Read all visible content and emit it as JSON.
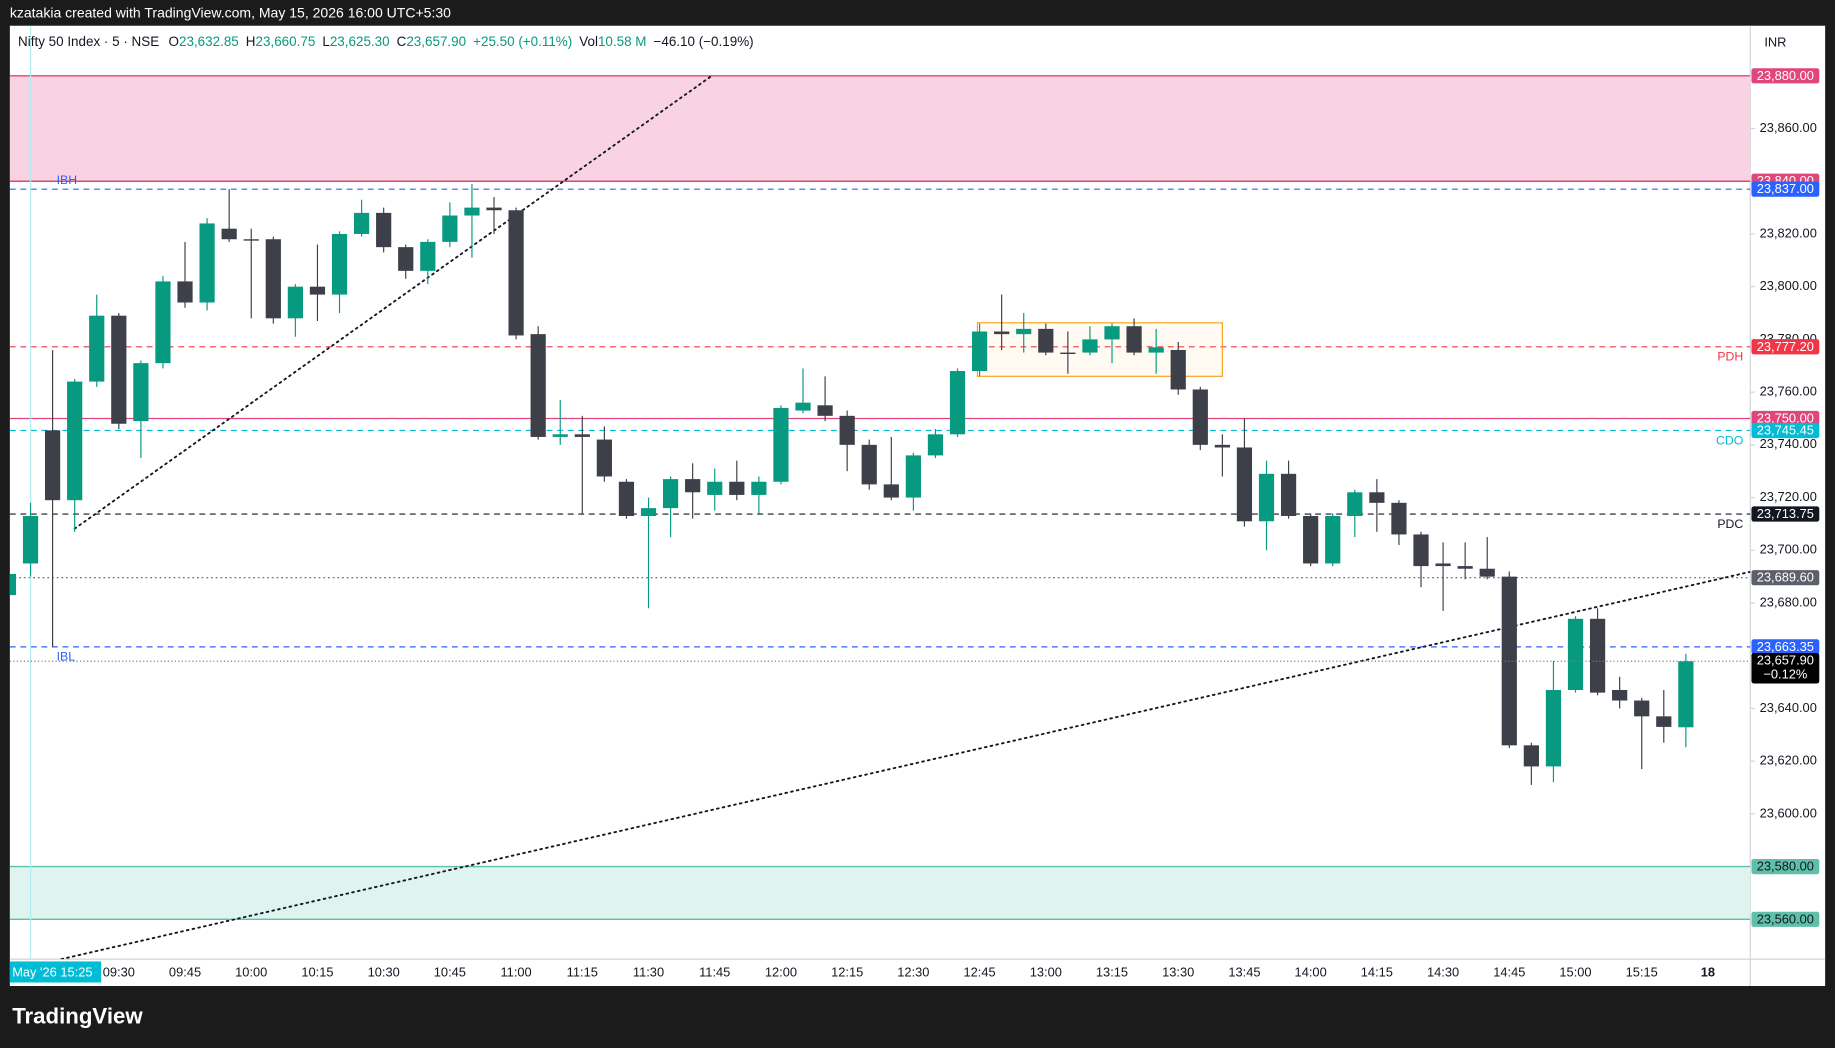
{
  "chart_data": {
    "type": "candlestick",
    "watermark": "kzatakia created with TradingView.com, May 15, 2026 16:00 UTC+5:30",
    "brand": "TradingView",
    "currency": "INR",
    "legend": {
      "symbol": "Nifty 50 Index · 5 · NSE",
      "fields": [
        {
          "key": "O",
          "value": "23,632.85"
        },
        {
          "key": "H",
          "value": "23,660.75"
        },
        {
          "key": "L",
          "value": "23,625.30"
        },
        {
          "key": "C",
          "value": "23,657.90"
        }
      ],
      "change": "+25.50 (+0.11%)",
      "volume_key": "Vol",
      "volume": "10.58 M",
      "volume_change": "−46.10 (−0.19%)"
    },
    "categories": [
      null,
      "May '26 15:25",
      null,
      null,
      null,
      "09:30",
      null,
      null,
      "09:45",
      null,
      null,
      "10:00",
      null,
      null,
      "10:15",
      null,
      null,
      "10:30",
      null,
      null,
      "10:45",
      null,
      null,
      "11:00",
      null,
      null,
      "11:15",
      null,
      null,
      "11:30",
      null,
      null,
      "11:45",
      null,
      null,
      "12:00",
      null,
      null,
      "12:15",
      null,
      null,
      "12:30",
      null,
      null,
      "12:45",
      null,
      null,
      "13:00",
      null,
      null,
      "13:15",
      null,
      null,
      "13:30",
      null,
      null,
      "13:45",
      null,
      null,
      "14:00",
      null,
      null,
      "14:15",
      null,
      null,
      "14:30",
      null,
      null,
      "14:45",
      null,
      null,
      "15:00",
      null,
      null,
      "15:15",
      null,
      null,
      "18"
    ],
    "open": [
      23683,
      23695,
      23745.5,
      23719,
      23764,
      23789,
      23749,
      23771,
      23802,
      23794,
      23822,
      23818,
      23818,
      23788,
      23800,
      23797,
      23820,
      23828,
      23815,
      23806,
      23817,
      23827,
      23830,
      23829,
      23782,
      23743,
      23744,
      23742,
      23726,
      23713,
      23716,
      23727,
      23721,
      23726,
      23721,
      23726,
      23753,
      23755,
      23751,
      23740,
      23725,
      23720,
      23736,
      23744,
      23768,
      23783,
      23782,
      23784,
      23775,
      23775,
      23780,
      23785,
      23775,
      23776,
      23761,
      23740,
      23739,
      23711,
      23729,
      23713,
      23695,
      23713,
      23722,
      23718,
      23706,
      23695,
      23694,
      23693,
      23690,
      23626,
      23618,
      23647,
      23674,
      23647,
      23643,
      23637,
      23632.85,
      null
    ],
    "high": [
      23692,
      23718,
      23776,
      23765,
      23797,
      23790,
      23772,
      23804,
      23817,
      23826,
      23837,
      23822,
      23819,
      23801,
      23816,
      23821,
      23833,
      23830,
      23816,
      23818,
      23832,
      23839,
      23834,
      23830,
      23785,
      23757,
      23751,
      23747,
      23727,
      23720,
      23728,
      23733,
      23731,
      23734,
      23728,
      23755,
      23769,
      23766,
      23753,
      23742,
      23743,
      23737,
      23746,
      23769,
      23786,
      23797,
      23790,
      23786,
      23783,
      23785,
      23786,
      23788,
      23784,
      23779,
      23762,
      23744,
      23750,
      23734,
      23734,
      23714,
      23714,
      23723,
      23727,
      23719,
      23707,
      23703,
      23703,
      23705,
      23692,
      23627,
      23658,
      23675,
      23678,
      23652,
      23644,
      23647,
      23660.75,
      null
    ],
    "low": [
      23682,
      23690,
      23663.35,
      23707,
      23762,
      23746,
      23735,
      23769,
      23792,
      23791,
      23817,
      23788,
      23786,
      23781,
      23787,
      23790,
      23819,
      23813,
      23803,
      23801,
      23815,
      23811,
      23820,
      23780,
      23742,
      23740,
      23714,
      23726,
      23712,
      23678,
      23705,
      23712,
      23715,
      23719,
      23714,
      23725,
      23752,
      23749,
      23730,
      23723,
      23719,
      23715,
      23735,
      23743,
      23766,
      23776,
      23775,
      23774,
      23767,
      23774,
      23771,
      23774,
      23767,
      23759,
      23738,
      23728,
      23709,
      23700,
      23712,
      23694,
      23694,
      23705,
      23707,
      23702,
      23686,
      23677,
      23689,
      23689,
      23625,
      23611,
      23612,
      23646,
      23645,
      23640,
      23617,
      23627,
      23625.3,
      null
    ],
    "close": [
      23691,
      23713,
      23719,
      23764,
      23789,
      23748,
      23771,
      23802,
      23794,
      23824,
      23818,
      23818,
      23788,
      23800,
      23797,
      23820,
      23828,
      23815,
      23806,
      23817,
      23827,
      23830,
      23829,
      23781.5,
      23743,
      23744,
      23743,
      23728,
      23713,
      23716,
      23727,
      23722,
      23726,
      23721,
      23726,
      23754,
      23756,
      23751,
      23740,
      23725,
      23720,
      23736,
      23744,
      23768,
      23783,
      23782,
      23784,
      23775,
      23774.5,
      23780,
      23785,
      23775,
      23777,
      23761,
      23740,
      23739,
      23711,
      23729,
      23713,
      23695,
      23713,
      23722,
      23718,
      23706,
      23694,
      23694,
      23693,
      23690,
      23626,
      23618,
      23647,
      23674,
      23646,
      23643,
      23637,
      23633,
      23657.9,
      null
    ],
    "up_color": "#089981",
    "down_color": "#3d3f49",
    "ylim": [
      23544.9,
      23899
    ],
    "yticks": [
      {
        "value": 23600,
        "label": "23,600.00"
      },
      {
        "value": 23620,
        "label": "23,620.00"
      },
      {
        "value": 23640,
        "label": "23,640.00"
      },
      {
        "value": 23660,
        "label": "23,660.00"
      },
      {
        "value": 23680,
        "label": "23,680.00"
      },
      {
        "value": 23700,
        "label": "23,700.00"
      },
      {
        "value": 23720,
        "label": "23,720.00"
      },
      {
        "value": 23740,
        "label": "23,740.00"
      },
      {
        "value": 23760,
        "label": "23,760.00"
      },
      {
        "value": 23780,
        "label": "23,780.00"
      },
      {
        "value": 23800,
        "label": "23,800.00"
      },
      {
        "value": 23820,
        "label": "23,820.00"
      },
      {
        "value": 23840,
        "label": "23,840.00"
      },
      {
        "value": 23860,
        "label": "23,860.00"
      }
    ],
    "grid": false,
    "zones": [
      {
        "top": 23880,
        "bottom": 23840,
        "top_label": "23,880.00",
        "bottom_label": "23,840.00",
        "fill": "#f9d3e1",
        "color": "#e0457b",
        "text_color": "#ffffff"
      },
      {
        "top": 23580,
        "bottom": 23560,
        "top_label": "23,580.00",
        "bottom_label": "23,560.00",
        "fill": "#dff4ef",
        "color": "#5fbfa9",
        "text_color": "#131722"
      }
    ],
    "levels": [
      {
        "value": 23837,
        "label": "23,837.00",
        "name": "IBH",
        "name_pos": "left-above",
        "color": "#2962ff",
        "style": "dashed"
      },
      {
        "value": 23777.2,
        "label": "23,777.20",
        "name": "PDH",
        "name_pos": "right-below",
        "color": "#f23645",
        "style": "dashed"
      },
      {
        "value": 23750,
        "label": "23,750.00",
        "color": "#e0457b",
        "style": "solid"
      },
      {
        "value": 23745.45,
        "label": "23,745.45",
        "name": "CDO",
        "name_pos": "right-below",
        "color": "#00bcd4",
        "style": "dashed"
      },
      {
        "value": 23713.75,
        "label": "23,713.75",
        "name": "PDC",
        "name_pos": "right-below",
        "color": "#131722",
        "style": "dashed"
      },
      {
        "value": 23689.6,
        "label": "23,689.60",
        "color": "#5d606b",
        "style": "dotted"
      },
      {
        "value": 23663.35,
        "label": "23,663.35",
        "name": "IBL",
        "name_pos": "left-below",
        "color": "#2962ff",
        "style": "dashed"
      }
    ],
    "last": {
      "value": 23657.9,
      "label": "23,657.90",
      "change": "−0.12%",
      "color": "#000000"
    },
    "trendlines": [
      {
        "x": [
          3,
          31.8
        ],
        "y": [
          23708.2,
          23879.6
        ],
        "color": "#131722"
      },
      {
        "x": [
          2.4,
          78.9
        ],
        "y": [
          23544.9,
          23691.8
        ],
        "color": "#131722"
      }
    ],
    "boxes": [
      {
        "x": [
          43.9,
          55
        ],
        "y": [
          23766,
          23786.3
        ],
        "color": "#f7a21b"
      }
    ]
  }
}
